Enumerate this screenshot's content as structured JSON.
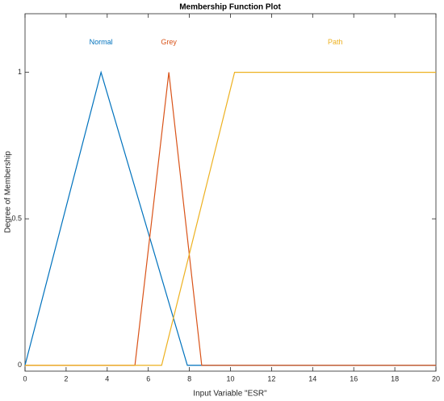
{
  "chart_data": {
    "type": "line",
    "title": "Membership Function Plot",
    "x_label": "Input Variable \"ESR\"",
    "y_label": "Degree of Membership",
    "xlim": [
      0,
      20
    ],
    "ylim": [
      -0.02,
      1.2
    ],
    "xticks": [
      0,
      2,
      4,
      6,
      8,
      10,
      12,
      14,
      16,
      18,
      20
    ],
    "yticks": [
      0,
      0.5,
      1
    ],
    "series": [
      {
        "name": "Normal",
        "color": "#0072bd",
        "x": [
          0,
          3.7,
          7.9,
          20
        ],
        "values": [
          0,
          1,
          0,
          0
        ]
      },
      {
        "name": "Grey",
        "color": "#d95319",
        "x": [
          0,
          5.35,
          7,
          8.6,
          20
        ],
        "values": [
          0,
          0,
          1,
          0,
          0
        ]
      },
      {
        "name": "Path",
        "color": "#edb120",
        "x": [
          0,
          6.65,
          10.2,
          20
        ],
        "values": [
          0,
          0,
          1,
          1
        ]
      }
    ]
  }
}
